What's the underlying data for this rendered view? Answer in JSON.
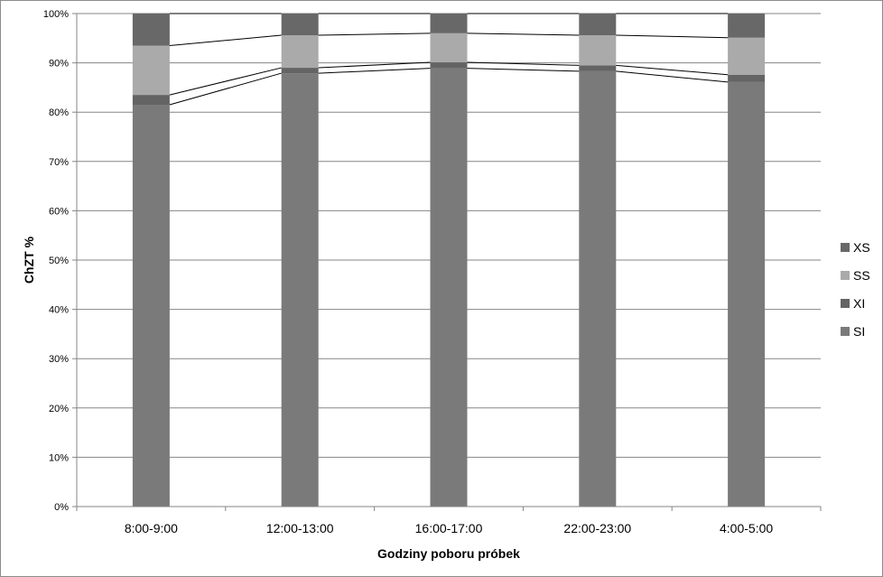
{
  "chart_data": {
    "type": "bar",
    "stacked": "percent",
    "categories": [
      "8:00-9:00",
      "12:00-13:00",
      "16:00-17:00",
      "22:00-23:00",
      "4:00-5:00"
    ],
    "series": [
      {
        "name": "SI",
        "values": [
          81.5,
          87.9,
          88.9,
          88.3,
          86.1
        ],
        "color": "#7a7a7a"
      },
      {
        "name": "XI",
        "values": [
          2.0,
          1.1,
          1.2,
          1.2,
          1.5
        ],
        "color": "#646464"
      },
      {
        "name": "SS",
        "values": [
          10.0,
          6.6,
          5.9,
          6.1,
          7.5
        ],
        "color": "#aaaaaa"
      },
      {
        "name": "XS",
        "values": [
          6.5,
          4.4,
          4.0,
          4.4,
          4.9
        ],
        "color": "#686868"
      }
    ],
    "xlabel": "Godziny poboru próbek",
    "ylabel": "ChZT %",
    "ylim": [
      0,
      100
    ],
    "yticks": [
      "0%",
      "10%",
      "20%",
      "30%",
      "40%",
      "50%",
      "60%",
      "70%",
      "80%",
      "90%",
      "100%"
    ],
    "grid": true,
    "legend_position": "right",
    "series_lines": true
  }
}
